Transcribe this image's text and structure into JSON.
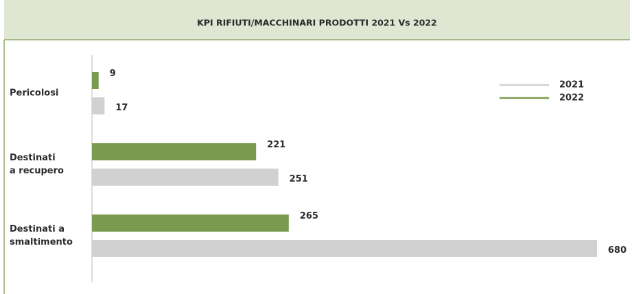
{
  "chart_data": {
    "type": "bar",
    "orientation": "horizontal",
    "title": "KPI RIFIUTI/MACCHINARI PRODOTTI 2021 Vs 2022",
    "categories": [
      [
        "Pericolosi"
      ],
      [
        "Destinati",
        "a recupero"
      ],
      [
        "Destinati a",
        "smaltimento"
      ]
    ],
    "series": [
      {
        "name": "2021",
        "color": "#d1d1d1",
        "values": [
          17,
          251,
          680
        ]
      },
      {
        "name": "2022",
        "color": "#7a9a4f",
        "values": [
          9,
          221,
          265
        ]
      }
    ],
    "xlim": [
      0,
      680
    ],
    "legend": "upper right"
  }
}
